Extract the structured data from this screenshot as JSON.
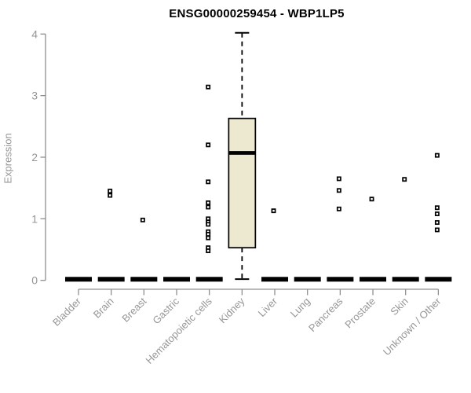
{
  "chart_data": {
    "type": "boxplot",
    "title": "ENSG00000259454 - WBP1LP5",
    "xlabel": "",
    "ylabel": "Expression",
    "ylim": [
      0,
      4
    ],
    "yticks": [
      0,
      1,
      2,
      3,
      4
    ],
    "grid": false,
    "categories": [
      "Bladder",
      "Brain",
      "Breast",
      "Gastric",
      "Hematopoietic cells",
      "Kidney",
      "Liver",
      "Lung",
      "Pancreas",
      "Prostate",
      "Skin",
      "Unknown / Other"
    ],
    "boxes": [
      {
        "category": "Bladder",
        "low": 0,
        "q1": 0,
        "median": 0,
        "q3": 0,
        "high": 0,
        "outliers": []
      },
      {
        "category": "Brain",
        "low": 0,
        "q1": 0,
        "median": 0,
        "q3": 0,
        "high": 0,
        "outliers": [
          1.45,
          1.38
        ]
      },
      {
        "category": "Breast",
        "low": 0,
        "q1": 0,
        "median": 0,
        "q3": 0,
        "high": 0,
        "outliers": [
          0.98
        ]
      },
      {
        "category": "Gastric",
        "low": 0,
        "q1": 0,
        "median": 0,
        "q3": 0,
        "high": 0,
        "outliers": []
      },
      {
        "category": "Hematopoietic cells",
        "low": 0,
        "q1": 0,
        "median": 0,
        "q3": 0,
        "high": 0,
        "outliers": [
          3.14,
          2.2,
          1.6,
          1.26,
          1.19,
          1.0,
          0.95,
          0.91,
          0.79,
          0.75,
          0.69,
          0.53,
          0.48
        ]
      },
      {
        "category": "Kidney",
        "low": 0.02,
        "q1": 0.53,
        "median": 2.07,
        "q3": 2.63,
        "high": 4.02,
        "outliers": []
      },
      {
        "category": "Liver",
        "low": 0,
        "q1": 0,
        "median": 0,
        "q3": 0,
        "high": 0,
        "outliers": [
          1.13
        ]
      },
      {
        "category": "Lung",
        "low": 0,
        "q1": 0,
        "median": 0,
        "q3": 0,
        "high": 0,
        "outliers": []
      },
      {
        "category": "Pancreas",
        "low": 0,
        "q1": 0,
        "median": 0,
        "q3": 0,
        "high": 0,
        "outliers": [
          1.65,
          1.46,
          1.16
        ]
      },
      {
        "category": "Prostate",
        "low": 0,
        "q1": 0,
        "median": 0,
        "q3": 0,
        "high": 0,
        "outliers": [
          1.32
        ]
      },
      {
        "category": "Skin",
        "low": 0,
        "q1": 0,
        "median": 0,
        "q3": 0,
        "high": 0,
        "outliers": [
          1.64
        ]
      },
      {
        "category": "Unknown / Other",
        "low": 0,
        "q1": 0,
        "median": 0,
        "q3": 0,
        "high": 0,
        "outliers": [
          2.03,
          1.18,
          1.08,
          0.94,
          0.82
        ]
      }
    ],
    "colors": {
      "box_fill": "#EDE8D0",
      "box_stroke": "#000000",
      "degenerate_bar": "#000000",
      "outlier_stroke": "#000000",
      "axis": "#8f8f8f",
      "tick_label": "#969696",
      "title": "#000000"
    }
  }
}
